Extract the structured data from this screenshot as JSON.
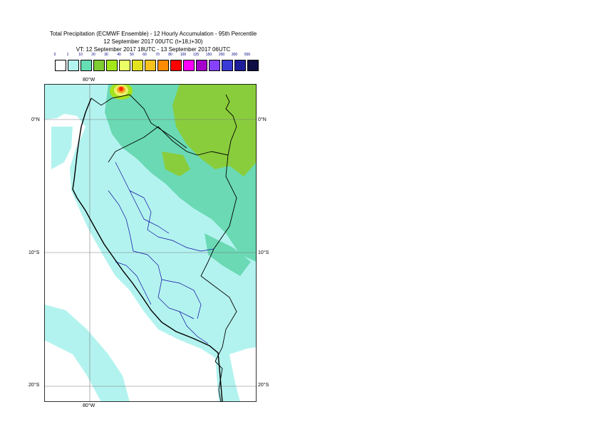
{
  "title": {
    "line1": "Total Precipitation (ECMWF Ensemble) - 12 Hourly Accumulation - 95th Percentile",
    "line2": "12 September 2017 00UTC (t+18,t+30)",
    "line3": "VT: 12 September 2017 18UTC - 13 September 2017 06UTC"
  },
  "legend": {
    "ticks": [
      "0",
      "1",
      "10",
      "20",
      "30",
      "40",
      "50",
      "60",
      "70",
      "80",
      "100",
      "125",
      "150",
      "200",
      "300",
      "500"
    ],
    "colors": [
      "#ffffff",
      "#b3f3ef",
      "#66deb4",
      "#7fcc33",
      "#a3e619",
      "#eaff66",
      "#e2e21f",
      "#f7c11e",
      "#ff8c00",
      "#ff0000",
      "#ff00ff",
      "#a500cc",
      "#8542ff",
      "#3a3ad6",
      "#1e1e9a",
      "#0f0f44"
    ]
  },
  "map": {
    "lon_top_label": "80°W",
    "lon_bottom_label": "80°W",
    "lat_labels": [
      "0°N",
      "10°S",
      "20°S"
    ],
    "colors": {
      "ocean_light": "#9ef0e8",
      "land_light": "#b3f3ef",
      "moderate": "#6ad9b4",
      "heavy": "#8acd3c",
      "very_heavy": "#a4e21b",
      "yellow": "#e9f16a",
      "orange": "#f7a11e",
      "red": "#ff2a00"
    }
  }
}
